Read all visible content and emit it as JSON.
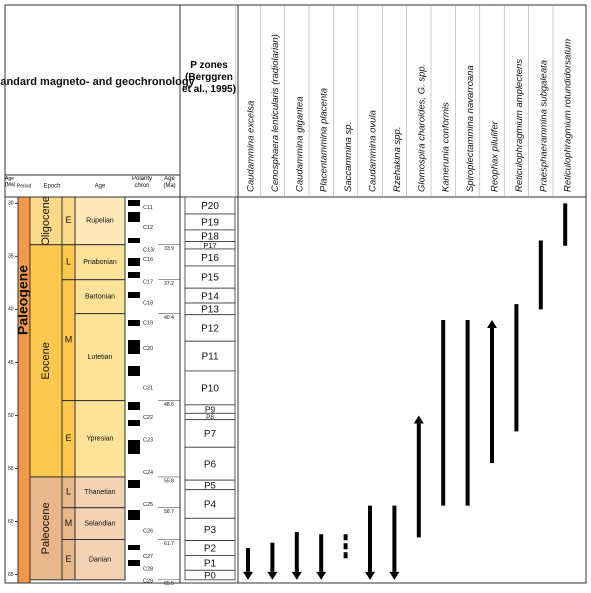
{
  "header": {
    "title": "Standard magneto- and geochronology",
    "pzones_title": "P zones (Berggren et al., 1995)"
  },
  "columns": {
    "age_ma": "Age (Ma)",
    "period": "Period",
    "epoch": "Epoch",
    "age": "Age",
    "polarity": "Polarity chron",
    "age_ma2": "Age (Ma)"
  },
  "chart_data": {
    "type": "range",
    "ylim": [
      29.4,
      65.8
    ],
    "yticks": [
      30,
      35,
      40,
      45,
      50,
      55,
      60,
      65
    ],
    "period": {
      "name": "Paleogene",
      "color": "#f39a4a"
    },
    "epochs": [
      {
        "name": "Oligocene",
        "color": "#fdd98a",
        "stage_color": "#fde8b8",
        "subdivisions": [
          {
            "label": "E",
            "stages": [
              {
                "name": "Rupelian",
                "base": 33.9
              }
            ]
          }
        ]
      },
      {
        "name": "Eocene",
        "color": "#fcc94e",
        "stage_color": "#fde29a",
        "subdivisions": [
          {
            "label": "L",
            "stages": [
              {
                "name": "Priabonian",
                "base": 37.2
              }
            ]
          },
          {
            "label": "M",
            "stages": [
              {
                "name": "Bartonian",
                "base": 40.4
              },
              {
                "name": "Lutetian",
                "base": 48.6
              }
            ]
          },
          {
            "label": "E",
            "stages": [
              {
                "name": "Ypresian",
                "base": 55.8
              }
            ]
          }
        ]
      },
      {
        "name": "Paleocene",
        "color": "#e8b88a",
        "stage_color": "#f3d3b3",
        "subdivisions": [
          {
            "label": "L",
            "stages": [
              {
                "name": "Thanetian",
                "base": 58.7
              }
            ]
          },
          {
            "label": "M",
            "stages": [
              {
                "name": "Selandian",
                "base": 61.7
              }
            ]
          },
          {
            "label": "E",
            "stages": [
              {
                "name": "Danian",
                "base": 65.5
              }
            ]
          }
        ]
      }
    ],
    "chrons": [
      {
        "label": "C11",
        "age": 30.4
      },
      {
        "label": "C12",
        "age": 32.3
      },
      {
        "label": "C13/",
        "age": 34.4
      },
      {
        "label": "C16",
        "age": 35.3
      },
      {
        "label": "C17",
        "age": 37.4
      },
      {
        "label": "C18",
        "age": 39.4
      },
      {
        "label": "C19",
        "age": 41.3
      },
      {
        "label": "C20",
        "age": 43.7
      },
      {
        "label": "C21",
        "age": 47.4
      },
      {
        "label": "C22",
        "age": 50.2
      },
      {
        "label": "C23",
        "age": 52.3
      },
      {
        "label": "C24",
        "age": 55.4
      },
      {
        "label": "C25",
        "age": 58.4
      },
      {
        "label": "C26",
        "age": 60.9
      },
      {
        "label": "C27",
        "age": 63.3
      },
      {
        "label": "C28",
        "age": 64.5
      },
      {
        "label": "C29",
        "age": 65.6
      }
    ],
    "pzones": [
      {
        "name": "P20",
        "base": 31.0
      },
      {
        "name": "P19",
        "base": 32.5
      },
      {
        "name": "P18",
        "base": 33.6
      },
      {
        "name": "P17",
        "base": 34.3
      },
      {
        "name": "P16",
        "base": 35.9
      },
      {
        "name": "P15",
        "base": 38.0
      },
      {
        "name": "P14",
        "base": 39.4
      },
      {
        "name": "P13",
        "base": 40.5
      },
      {
        "name": "P12",
        "base": 43.0
      },
      {
        "name": "P11",
        "base": 45.8
      },
      {
        "name": "P10",
        "base": 49.0
      },
      {
        "name": "P9",
        "base": 49.8
      },
      {
        "name": "P8",
        "base": 50.4
      },
      {
        "name": "P7",
        "base": 53.0
      },
      {
        "name": "P6",
        "base": 56.1
      },
      {
        "name": "P5",
        "base": 57.0
      },
      {
        "name": "P4",
        "base": 59.7
      },
      {
        "name": "P3",
        "base": 61.8
      },
      {
        "name": "P2",
        "base": 63.2
      },
      {
        "name": "P1",
        "base": 64.6
      },
      {
        "name": "P0",
        "base": 65.5
      }
    ],
    "taxa": [
      {
        "name": "Caudammina excelsa",
        "top": 62.5,
        "base": 65.5,
        "arrow": "down"
      },
      {
        "name": "Cenosphaera lenticularis (radiolarian)",
        "top": 62.0,
        "base": 65.5,
        "arrow": "down"
      },
      {
        "name": "Caudammina gigantea",
        "top": 61.0,
        "base": 65.5,
        "arrow": "down"
      },
      {
        "name": "Placentammina placenta",
        "top": 61.2,
        "base": 65.5,
        "arrow": "down"
      },
      {
        "name": "Saccammina sp.",
        "top": 61.2,
        "base": 63.5,
        "style": "dashed"
      },
      {
        "name": "Caudammina ovula",
        "top": 58.5,
        "base": 65.5,
        "arrow": "down"
      },
      {
        "name": "Rzehakina spp.",
        "top": 58.5,
        "base": 65.5,
        "arrow": "down"
      },
      {
        "name": "Glomospira charoides, G. spp.",
        "top": 50.0,
        "base": 61.5,
        "arrow": "up"
      },
      {
        "name": "Kamerunia conformis",
        "top": 41.0,
        "base": 58.5
      },
      {
        "name": "Spiroplectammina navarroana",
        "top": 41.0,
        "base": 58.5
      },
      {
        "name": "Reophax pilulifer",
        "top": 41.0,
        "base": 54.5,
        "arrow": "up"
      },
      {
        "name": "Reticulophragmium amplectens",
        "top": 39.5,
        "base": 51.5
      },
      {
        "name": "Praesphaerammina subgaleata",
        "top": 33.5,
        "base": 40.0
      },
      {
        "name": "Reticulophragmium rotundidorsatum",
        "top": 30.0,
        "base": 34.0
      }
    ]
  }
}
